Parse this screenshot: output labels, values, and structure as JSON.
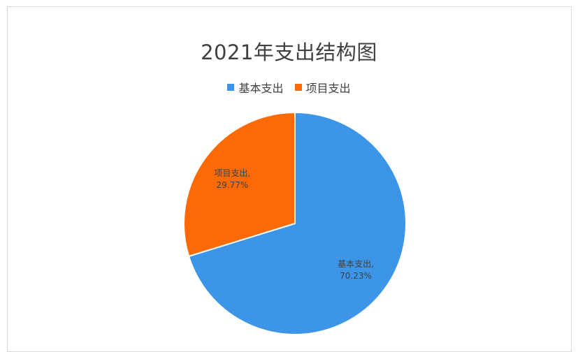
{
  "chart_data": {
    "type": "pie",
    "title": "2021年支出结构图",
    "categories": [
      "基本支出",
      "项目支出"
    ],
    "values": [
      70.23,
      29.77
    ],
    "unit": "%",
    "data_labels": [
      {
        "category": "基本支出,",
        "value": "70.23%"
      },
      {
        "category": "项目支出,",
        "value": "29.77%"
      }
    ],
    "colors": [
      "#3c95e6",
      "#fc6a08"
    ],
    "legend_position": "top",
    "start_angle_deg": 0,
    "direction": "clockwise"
  }
}
